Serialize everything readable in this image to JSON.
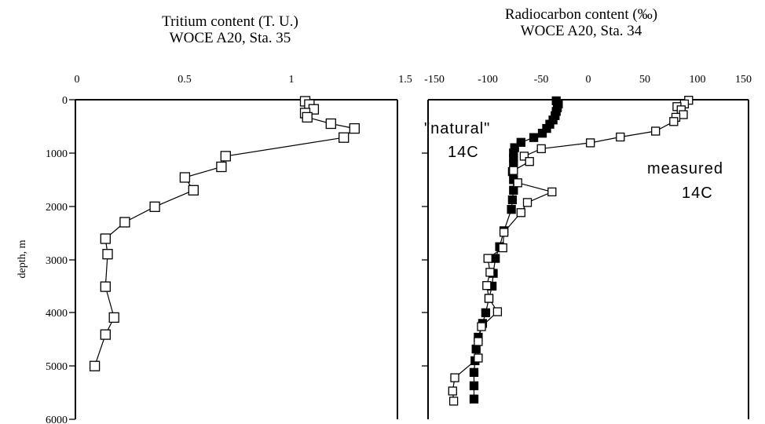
{
  "chart_data": [
    {
      "type": "scatter",
      "title": "Tritium content (T. U.)",
      "subtitle": "WOCE A20, Sta. 35",
      "xlabel": "",
      "ylabel": "depth, m",
      "x_ticks": [
        "0",
        "0.5",
        "1",
        "1.5"
      ],
      "y_ticks": [
        "0",
        "1000",
        "2000",
        "3000",
        "4000",
        "5000",
        "6000"
      ],
      "xlim": [
        0,
        1.5
      ],
      "ylim": [
        6000,
        0
      ],
      "grid": false,
      "series": [
        {
          "marker": "open-square",
          "line": true,
          "points": [
            [
              1.07,
              30
            ],
            [
              1.09,
              90
            ],
            [
              1.11,
              180
            ],
            [
              1.07,
              250
            ],
            [
              1.08,
              330
            ],
            [
              1.19,
              450
            ],
            [
              1.3,
              540
            ],
            [
              1.25,
              710
            ],
            [
              0.7,
              1060
            ],
            [
              0.68,
              1260
            ],
            [
              0.51,
              1460
            ],
            [
              0.55,
              1700
            ],
            [
              0.37,
              2010
            ],
            [
              0.23,
              2300
            ],
            [
              0.14,
              2610
            ],
            [
              0.15,
              2900
            ],
            [
              0.14,
              3510
            ],
            [
              0.18,
              4090
            ],
            [
              0.14,
              4410
            ],
            [
              0.09,
              5000
            ]
          ]
        }
      ]
    },
    {
      "type": "scatter",
      "title": "Radiocarbon content (‰)",
      "subtitle": "WOCE A20, Sta. 34",
      "xlabel": "",
      "ylabel": "",
      "x_ticks": [
        "-150",
        "-100",
        "-50",
        "0",
        "50",
        "100",
        "150"
      ],
      "xlim": [
        -150,
        150
      ],
      "ylim": [
        6000,
        0
      ],
      "grid": false,
      "annotations": [
        {
          "line1": "\"natural\"",
          "line2": "14C"
        },
        {
          "line1": "measured",
          "line2": "14C"
        }
      ],
      "series": [
        {
          "marker": "filled-square",
          "line": true,
          "points": [
            [
              -30,
              20
            ],
            [
              -28,
              80
            ],
            [
              -29,
              150
            ],
            [
              -30,
              220
            ],
            [
              -31,
              300
            ],
            [
              -33,
              380
            ],
            [
              -36,
              460
            ],
            [
              -39,
              540
            ],
            [
              -43,
              630
            ],
            [
              -51,
              710
            ],
            [
              -63,
              800
            ],
            [
              -69,
              900
            ],
            [
              -70,
              1000
            ],
            [
              -70,
              1100
            ],
            [
              -70,
              1200
            ],
            [
              -71,
              1350
            ],
            [
              -70,
              1500
            ],
            [
              -70,
              1700
            ],
            [
              -71,
              1880
            ],
            [
              -72,
              2060
            ],
            [
              -79,
              2460
            ],
            [
              -83,
              2760
            ],
            [
              -87,
              2980
            ],
            [
              -89,
              3260
            ],
            [
              -90,
              3500
            ],
            [
              -93,
              3730
            ],
            [
              -96,
              4000
            ],
            [
              -99,
              4200
            ],
            [
              -103,
              4460
            ],
            [
              -105,
              4680
            ],
            [
              -106,
              4900
            ],
            [
              -107,
              5120
            ],
            [
              -107,
              5370
            ],
            [
              -107,
              5620
            ]
          ]
        },
        {
          "marker": "open-square",
          "line": true,
          "points": [
            [
              94,
              10
            ],
            [
              90,
              80
            ],
            [
              83,
              130
            ],
            [
              87,
              190
            ],
            [
              89,
              280
            ],
            [
              82,
              330
            ],
            [
              80,
              410
            ],
            [
              63,
              590
            ],
            [
              30,
              700
            ],
            [
              2,
              810
            ],
            [
              -44,
              920
            ],
            [
              -60,
              1060
            ],
            [
              -55,
              1160
            ],
            [
              -70,
              1330
            ],
            [
              -66,
              1560
            ],
            [
              -34,
              1730
            ],
            [
              -57,
              1930
            ],
            [
              -63,
              2120
            ],
            [
              -79,
              2490
            ],
            [
              -80,
              2780
            ],
            [
              -94,
              2980
            ],
            [
              -92,
              3240
            ],
            [
              -95,
              3490
            ],
            [
              -93,
              3730
            ],
            [
              -85,
              3980
            ],
            [
              -100,
              4260
            ],
            [
              -103,
              4540
            ],
            [
              -103,
              4850
            ],
            [
              -125,
              5220
            ],
            [
              -127,
              5470
            ],
            [
              -126,
              5660
            ]
          ]
        }
      ]
    }
  ]
}
